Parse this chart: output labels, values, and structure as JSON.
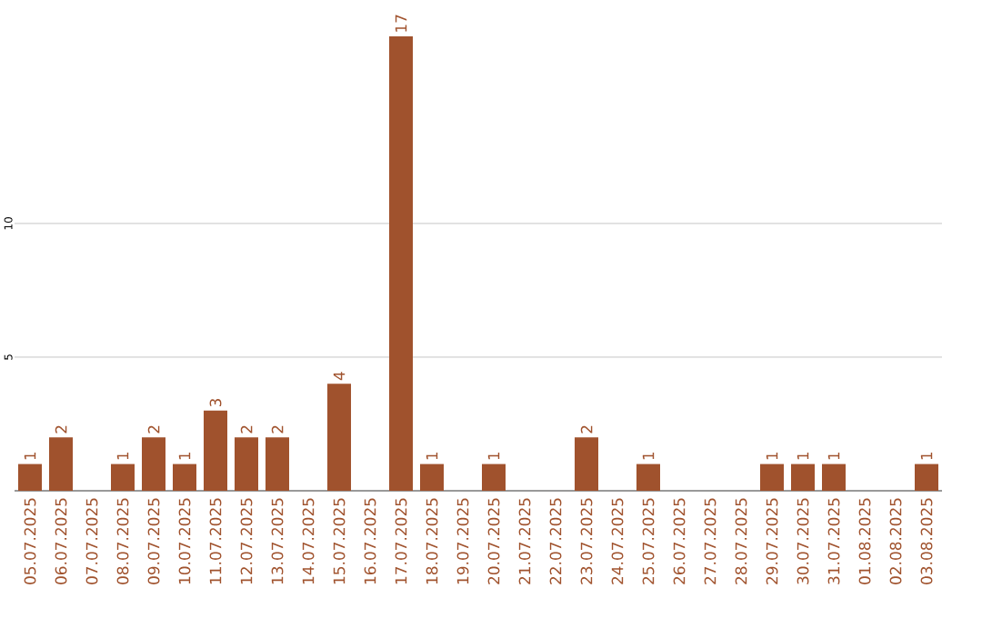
{
  "chart_data": {
    "type": "bar",
    "categories": [
      "05.07.2025",
      "06.07.2025",
      "07.07.2025",
      "08.07.2025",
      "09.07.2025",
      "10.07.2025",
      "11.07.2025",
      "12.07.2025",
      "13.07.2025",
      "14.07.2025",
      "15.07.2025",
      "16.07.2025",
      "17.07.2025",
      "18.07.2025",
      "19.07.2025",
      "20.07.2025",
      "21.07.2025",
      "22.07.2025",
      "23.07.2025",
      "24.07.2025",
      "25.07.2025",
      "26.07.2025",
      "27.07.2025",
      "28.07.2025",
      "29.07.2025",
      "30.07.2025",
      "31.07.2025",
      "01.08.2025",
      "02.08.2025",
      "03.08.2025"
    ],
    "values": [
      1,
      2,
      0,
      1,
      2,
      1,
      3,
      2,
      2,
      0,
      4,
      0,
      17,
      1,
      0,
      1,
      0,
      0,
      2,
      0,
      1,
      0,
      0,
      0,
      1,
      1,
      1,
      0,
      0,
      1
    ],
    "value_labels": [
      "1",
      "2",
      null,
      "1",
      "2",
      "1",
      "3",
      "2",
      "2",
      null,
      "4",
      null,
      "17",
      "1",
      null,
      "1",
      null,
      null,
      "2",
      null,
      "1",
      null,
      null,
      null,
      "1",
      "1",
      "1",
      null,
      null,
      "1"
    ],
    "color": "#a0522d",
    "ylim": [
      0,
      17
    ],
    "yticks": [
      5,
      10
    ],
    "grid": "y"
  }
}
